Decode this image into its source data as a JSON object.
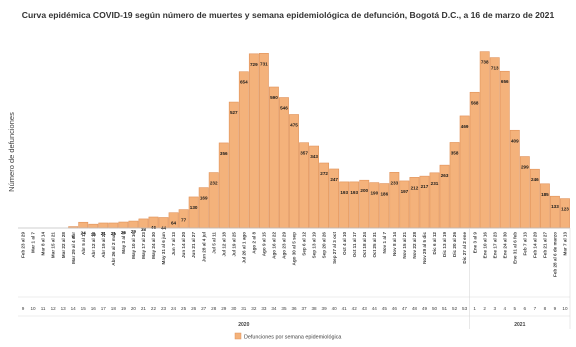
{
  "chart_data": {
    "type": "bar",
    "title": "Curva epidémica COVID-19 según número de muertes y semana epidemiológica de defunción, Bogotá D.C., a 16 de marzo de 2021",
    "ylabel": "Número de defunciones",
    "ylim": [
      0,
      770
    ],
    "grid": false,
    "legend_position": "bottom",
    "bar_color": "#f4b27b",
    "bar_edge_color": "#e0925a",
    "series": [
      {
        "name": "Defunciones por semana epidemiológica",
        "values": [
          0,
          0,
          0,
          0,
          0,
          6,
          24,
          16,
          21,
          21,
          25,
          29,
          38,
          46,
          44,
          64,
          77,
          130,
          169,
          232,
          356,
          527,
          654,
          729,
          731,
          590,
          546,
          475,
          357,
          343,
          272,
          247,
          193,
          193,
          200,
          190,
          186,
          233,
          197,
          212,
          217,
          231,
          263,
          358,
          469,
          568,
          738,
          713,
          656,
          409,
          299,
          246,
          185,
          133,
          123
        ]
      }
    ],
    "value_labels": [
      "",
      "",
      "",
      "",
      "",
      "6",
      "24",
      "16",
      "21",
      "21",
      "25",
      "29",
      "38",
      "46",
      "44",
      "64",
      "77",
      "130",
      "169",
      "232",
      "356",
      "527",
      "654",
      "729",
      "731",
      "590",
      "546",
      "475",
      "357",
      "343",
      "272",
      "247",
      "193",
      "193",
      "200",
      "190",
      "186",
      "233",
      "197",
      "212",
      "217",
      "231",
      "263",
      "358",
      "469",
      "568",
      "738",
      "713",
      "656",
      "409",
      "299",
      "246",
      "185",
      "133",
      "123"
    ],
    "categories": [
      "Feb 23 al 29",
      "Mar 1 al 7",
      "Mar 8 al 14",
      "Mar 15 al 21",
      "Mar 22 al 28",
      "Mar 29 al 4 abr",
      "Abr 5 al 11",
      "Abr 12 al 18",
      "Abr 19 al 25",
      "Abr 26 al 2 may",
      "May 3 al 9",
      "May 10 al 16",
      "May 17 al 23",
      "May 24 al 30",
      "May 31 al 6 jun",
      "Jun 7 al 13",
      "Jun 14 al 20",
      "Jun 21 al 27",
      "Jun 28 al 4 jul",
      "Jul 5 al 11",
      "Jul 12 al 18",
      "Jul 19 al 25",
      "Jul 26 al 1 ago",
      "Ago 2 al 8",
      "Ago 9 al 15",
      "Ago 16 al 22",
      "Ago 23 al 29",
      "Ago 30 al 5 sep",
      "Sep 6 al 12",
      "Sep 13 al 19",
      "Sep 20 al 26",
      "Sep 27 al 3 oct",
      "Oct 4 al 10",
      "Oct 11 al 17",
      "Oct 18 al 24",
      "Oct 25 al 31",
      "Nov 1 al 7",
      "Nov 8 al 14",
      "Nov 15 al 21",
      "Nov 22 al 28",
      "Nov 29 al 5 dic",
      "Dic 6 al 12",
      "Dic 13 al 19",
      "Dic 20 al 26",
      "Dic 27 al 2 ene",
      "Ene 3 al 9",
      "Ene 10 al 16",
      "Ene 17 al 23",
      "Ene 24 al 30",
      "Ene 31 al 6 feb",
      "Feb 7 al 13",
      "Feb 14 al 20",
      "Feb 21 al 27",
      "Feb 28 al 6 de marzo",
      "Mar 7 al 13"
    ],
    "weeks": [
      "9",
      "10",
      "11",
      "12",
      "13",
      "14",
      "15",
      "16",
      "17",
      "18",
      "19",
      "20",
      "21",
      "22",
      "23",
      "24",
      "25",
      "26",
      "27",
      "28",
      "29",
      "30",
      "31",
      "32",
      "33",
      "34",
      "35",
      "36",
      "37",
      "38",
      "39",
      "40",
      "41",
      "42",
      "43",
      "44",
      "45",
      "46",
      "47",
      "48",
      "49",
      "50",
      "51",
      "52",
      "53",
      "1",
      "2",
      "3",
      "4",
      "5",
      "6",
      "7",
      "8",
      "9",
      "10"
    ],
    "years": [
      {
        "label": "2020",
        "start": 0,
        "end": 44
      },
      {
        "label": "2021",
        "start": 45,
        "end": 54
      }
    ]
  }
}
